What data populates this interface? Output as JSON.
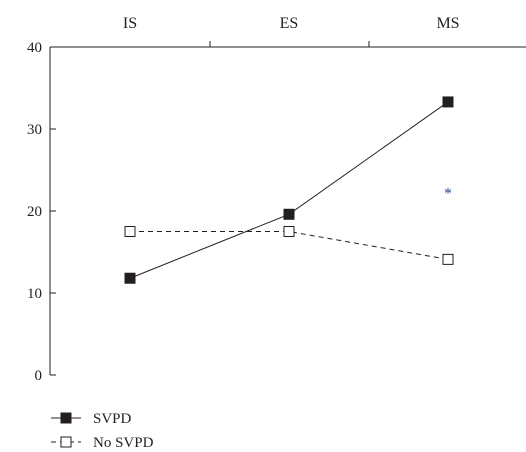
{
  "chart_data": {
    "type": "line",
    "categories": [
      "IS",
      "ES",
      "MS"
    ],
    "ylim": [
      0,
      40
    ],
    "yticks": [
      "0",
      "10",
      "20",
      "30",
      "40"
    ],
    "grid": false,
    "legend_position": "bottom-left",
    "series": [
      {
        "name": "SVPD",
        "values": [
          11.8,
          19.6,
          33.3
        ],
        "line_style": "solid",
        "marker": "filled-square",
        "color": "#231f20"
      },
      {
        "name": "No SVPD",
        "values": [
          17.5,
          17.5,
          14.1
        ],
        "line_style": "dashed",
        "marker": "open-square",
        "color": "#231f20"
      }
    ],
    "annotations": [
      {
        "text": "*",
        "category": "MS",
        "y": 22,
        "color": "#2b4a8a"
      }
    ]
  }
}
